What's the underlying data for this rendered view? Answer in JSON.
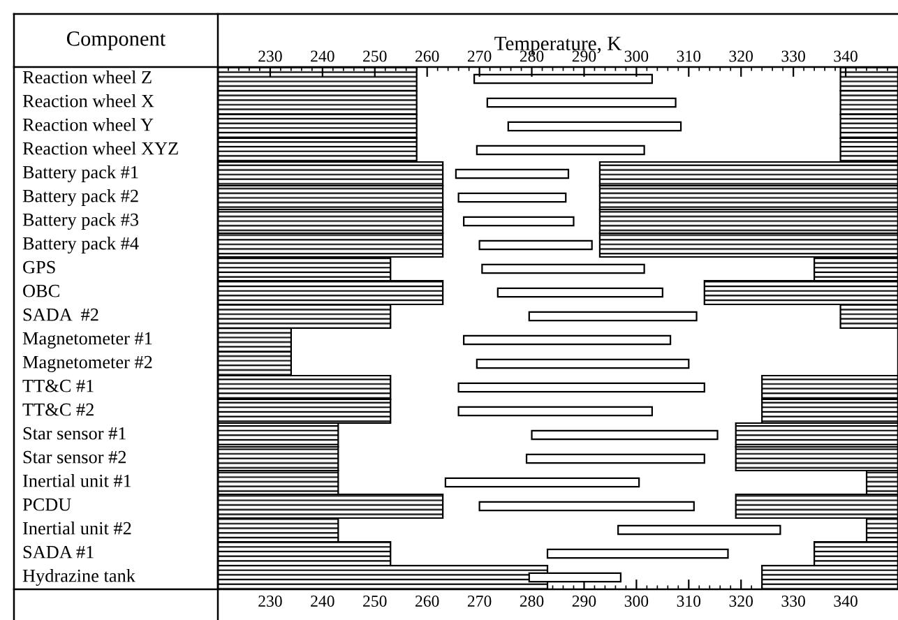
{
  "chart_data": {
    "type": "bar",
    "orientation": "horizontal",
    "ylabel": "Component",
    "xlabel": null,
    "x2label": "Temperature, K",
    "categories": [
      "Reaction wheel Z",
      "Reaction wheel X",
      "Reaction wheel Y",
      "Reaction wheel XYZ",
      "Battery pack #1",
      "Battery pack #2",
      "Battery pack #3",
      "Battery pack #4",
      "GPS",
      "OBC",
      "SADA  #2",
      "Magnetometer #1",
      "Magnetometer #2",
      "TT&C #1",
      "TT&C #2",
      "Star sensor #1",
      "Star sensor #2",
      "Inertial unit #1",
      "PCDU",
      "Inertial unit #2",
      "SADA #1",
      "Hydrazine tank"
    ],
    "series": [
      {
        "color": "#000000",
        "base": [
          220,
          220,
          220,
          220,
          220,
          220,
          220,
          220,
          220,
          220,
          220,
          220,
          220,
          220,
          220,
          220,
          220,
          220,
          220,
          220,
          220,
          220
        ],
        "values": [
          38,
          38,
          38,
          38,
          43,
          43,
          43,
          43,
          33,
          43,
          33,
          14,
          14,
          33,
          33,
          23,
          23,
          23,
          43,
          23,
          33,
          63
        ]
      },
      {
        "color": "#000000",
        "base": [
          339,
          339,
          339,
          339,
          293,
          293,
          293,
          293,
          334,
          313,
          339,
          null,
          null,
          324,
          324,
          319,
          319,
          344,
          319,
          344,
          334,
          324
        ],
        "values": [
          11,
          11,
          11,
          11,
          57,
          57,
          57,
          57,
          16,
          37,
          11,
          null,
          null,
          26,
          26,
          31,
          31,
          6,
          31,
          6,
          16,
          26
        ]
      },
      {
        "color": "#ffffff",
        "base": [
          269,
          271.5,
          275.5,
          269.5,
          265.5,
          266,
          267,
          270,
          270.5,
          273.5,
          279.5,
          267,
          269.5,
          266,
          266,
          280,
          279,
          263.5,
          270,
          296.5,
          283,
          279.5
        ],
        "values": [
          34,
          36,
          33,
          32,
          21.5,
          20.5,
          21,
          21.5,
          31,
          31.5,
          32,
          39.5,
          40.5,
          47,
          37,
          35.5,
          34,
          37,
          41,
          31,
          34.5,
          17.5
        ]
      }
    ],
    "xlim": [
      220,
      350
    ],
    "xticks": [
      230,
      240,
      250,
      260,
      270,
      280,
      290,
      300,
      310,
      320,
      330,
      340
    ],
    "x2lim": [
      220,
      350
    ],
    "x2ticks": [
      230,
      240,
      250,
      260,
      270,
      280,
      290,
      300,
      310,
      320,
      330,
      340
    ],
    "grid": false,
    "legend": false
  }
}
